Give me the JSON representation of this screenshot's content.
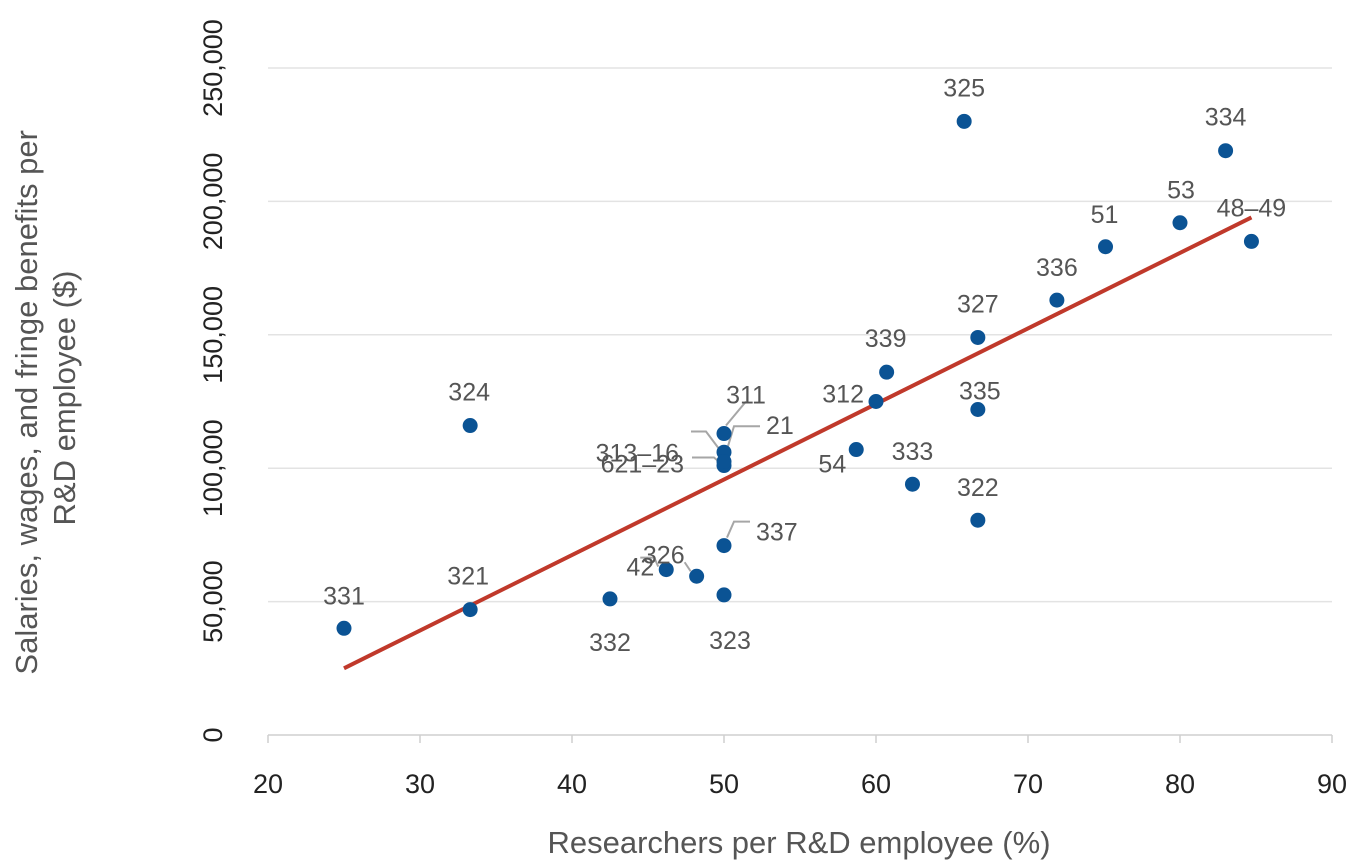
{
  "chart_data": {
    "type": "scatter",
    "xlabel": "Researchers per R&D employee (%)",
    "ylabel_lines": [
      "Salaries, wages, and fringe benefits per",
      "R&D employee ($)"
    ],
    "xlim": [
      20,
      90
    ],
    "ylim": [
      0,
      250000
    ],
    "x_ticks": [
      20,
      30,
      40,
      50,
      60,
      70,
      80,
      90
    ],
    "x_tick_labels": [
      "20",
      "30",
      "40",
      "50",
      "60",
      "70",
      "80",
      "90"
    ],
    "y_ticks": [
      0,
      50000,
      100000,
      150000,
      200000,
      250000
    ],
    "y_tick_labels": [
      "0",
      "50,000",
      "100,000",
      "150,000",
      "200,000",
      "250,000"
    ],
    "grid": "horizontal",
    "marker_color": "#0b5394",
    "trendline_color": "#c0392b",
    "trendline": {
      "x": [
        25,
        84.7
      ],
      "y": [
        25000,
        194000
      ]
    },
    "points": [
      {
        "label": "331",
        "x": 25,
        "y": 40000
      },
      {
        "label": "321",
        "x": 33.3,
        "y": 47000
      },
      {
        "label": "324",
        "x": 33.3,
        "y": 116000
      },
      {
        "label": "332",
        "x": 42.5,
        "y": 51000
      },
      {
        "label": "42",
        "x": 46.2,
        "y": 62000
      },
      {
        "label": "326",
        "x": 48.2,
        "y": 59500
      },
      {
        "label": "323",
        "x": 50,
        "y": 52500
      },
      {
        "label": "337",
        "x": 50,
        "y": 71000
      },
      {
        "label": "621–23",
        "x": 50,
        "y": 101000
      },
      {
        "label": "21",
        "x": 50,
        "y": 106000
      },
      {
        "label": "313–16",
        "x": 50,
        "y": 102500
      },
      {
        "label": "311",
        "x": 50,
        "y": 113000
      },
      {
        "label": "54",
        "x": 58.7,
        "y": 107000
      },
      {
        "label": "312",
        "x": 60,
        "y": 125000
      },
      {
        "label": "339",
        "x": 60.7,
        "y": 136000
      },
      {
        "label": "333",
        "x": 62.4,
        "y": 94000
      },
      {
        "label": "325",
        "x": 65.8,
        "y": 230000
      },
      {
        "label": "327",
        "x": 66.7,
        "y": 149000
      },
      {
        "label": "335",
        "x": 66.7,
        "y": 122000
      },
      {
        "label": "322",
        "x": 66.7,
        "y": 80500
      },
      {
        "label": "336",
        "x": 71.9,
        "y": 163000
      },
      {
        "label": "51",
        "x": 75.1,
        "y": 183000
      },
      {
        "label": "53",
        "x": 80,
        "y": 192000
      },
      {
        "label": "334",
        "x": 83,
        "y": 219000
      },
      {
        "label": "48–49",
        "x": 84.7,
        "y": 185000
      }
    ]
  }
}
